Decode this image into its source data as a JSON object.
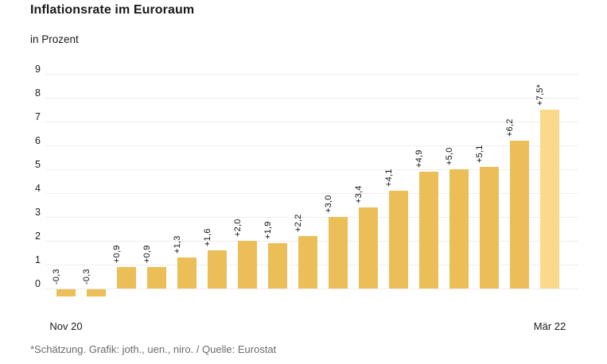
{
  "header": {
    "title": "Inflationsrate im Euroraum",
    "subtitle": "in Prozent"
  },
  "chart_data": {
    "type": "bar",
    "title": "Inflationsrate im Euroraum",
    "subtitle": "in Prozent",
    "ylabel": "Prozent",
    "ylim": [
      -0.5,
      9
    ],
    "y_ticks": [
      0,
      1,
      2,
      3,
      4,
      5,
      6,
      7,
      8,
      9
    ],
    "grid": "horizontal",
    "legend": "none",
    "x_start_label": "Nov 20",
    "x_end_label": "Mär 22",
    "bars": [
      {
        "value": -0.3,
        "label": "-0,3",
        "forecast": false
      },
      {
        "value": -0.3,
        "label": "-0,3",
        "forecast": false
      },
      {
        "value": 0.9,
        "label": "+0,9",
        "forecast": false
      },
      {
        "value": 0.9,
        "label": "+0,9",
        "forecast": false
      },
      {
        "value": 1.3,
        "label": "+1,3",
        "forecast": false
      },
      {
        "value": 1.6,
        "label": "+1,6",
        "forecast": false
      },
      {
        "value": 2.0,
        "label": "+2,0",
        "forecast": false
      },
      {
        "value": 1.9,
        "label": "+1,9",
        "forecast": false
      },
      {
        "value": 2.2,
        "label": "+2,2",
        "forecast": false
      },
      {
        "value": 3.0,
        "label": "+3,0",
        "forecast": false
      },
      {
        "value": 3.4,
        "label": "+3,4",
        "forecast": false
      },
      {
        "value": 4.1,
        "label": "+4,1",
        "forecast": false
      },
      {
        "value": 4.9,
        "label": "+4,9",
        "forecast": false
      },
      {
        "value": 5.0,
        "label": "+5,0",
        "forecast": false
      },
      {
        "value": 5.1,
        "label": "+5,1",
        "forecast": false
      },
      {
        "value": 6.2,
        "label": "+6,2",
        "forecast": false
      },
      {
        "value": 7.5,
        "label": "+7,5*",
        "forecast": true
      }
    ],
    "colors": {
      "bar": "#ecbe58",
      "forecast_bar": "#fbd98a",
      "gridline": "#eeeeee"
    }
  },
  "footer": {
    "note": "*Schätzung. Grafik: joth., uen., niro. / Quelle: Eurostat"
  }
}
